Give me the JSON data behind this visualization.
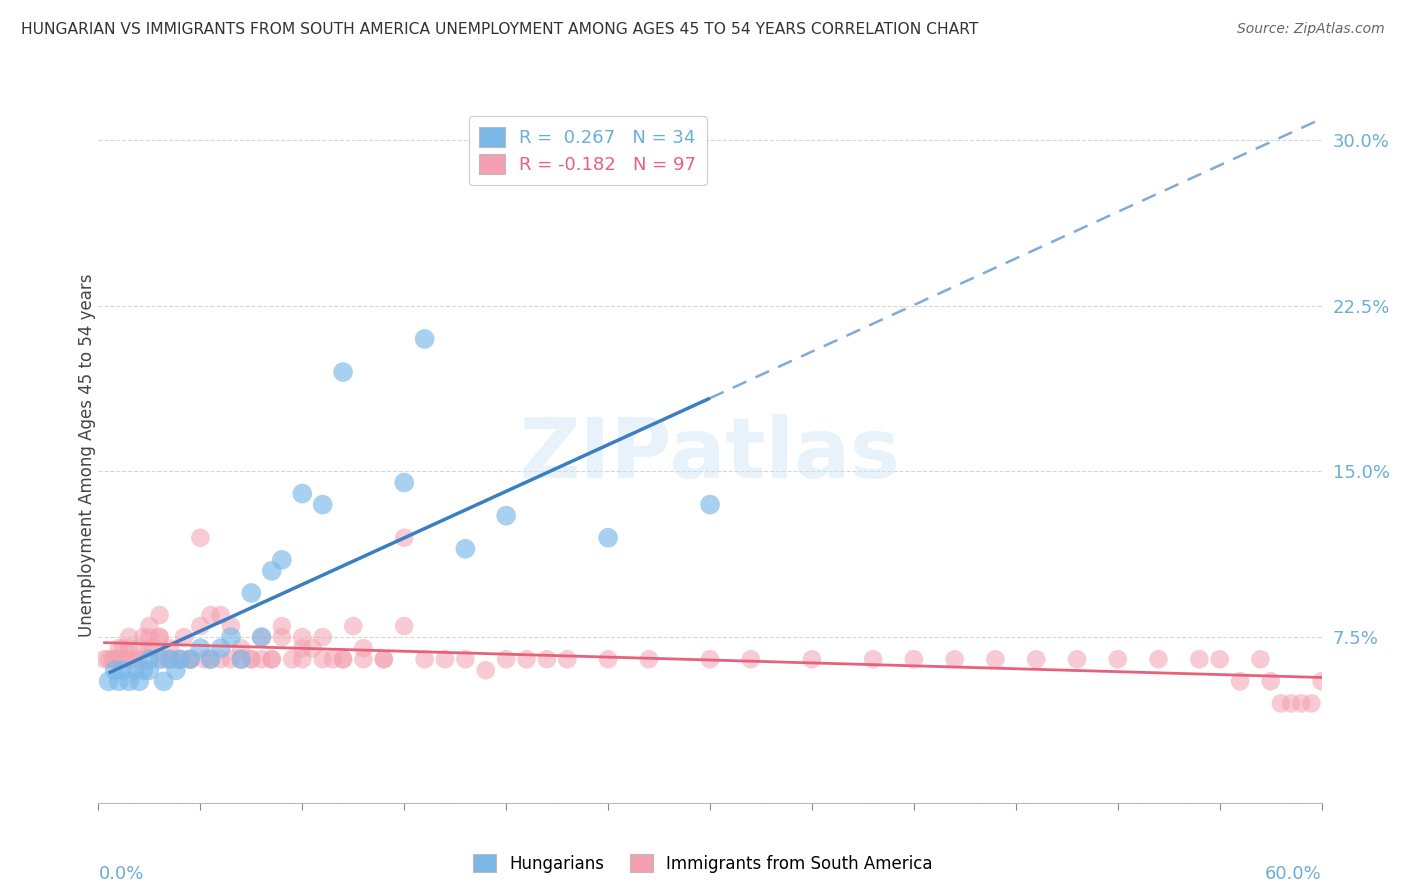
{
  "title": "HUNGARIAN VS IMMIGRANTS FROM SOUTH AMERICA UNEMPLOYMENT AMONG AGES 45 TO 54 YEARS CORRELATION CHART",
  "source": "Source: ZipAtlas.com",
  "ylabel": "Unemployment Among Ages 45 to 54 years",
  "ytick_values": [
    0.0,
    0.075,
    0.15,
    0.225,
    0.3
  ],
  "ytick_labels": [
    "",
    "7.5%",
    "15.0%",
    "22.5%",
    "30.0%"
  ],
  "xlim": [
    0.0,
    0.6
  ],
  "ylim": [
    0.0,
    0.315
  ],
  "legend1_R": "R =  0.267",
  "legend1_N": "N = 34",
  "legend2_R": "R = -0.182",
  "legend2_N": "N = 97",
  "blue_color": "#7ab8e8",
  "pink_color": "#f4a0b0",
  "blue_line_color": "#3a7fc1",
  "pink_line_color": "#e8607a",
  "watermark_text": "ZIPatlas",
  "axis_color": "#6baed6",
  "title_color": "#333333",
  "hungarian_x": [
    0.005,
    0.008,
    0.01,
    0.012,
    0.015,
    0.018,
    0.02,
    0.022,
    0.025,
    0.025,
    0.03,
    0.032,
    0.035,
    0.038,
    0.04,
    0.045,
    0.05,
    0.055,
    0.06,
    0.065,
    0.07,
    0.075,
    0.08,
    0.085,
    0.09,
    0.1,
    0.11,
    0.12,
    0.15,
    0.16,
    0.18,
    0.2,
    0.25,
    0.3
  ],
  "hungarian_y": [
    0.055,
    0.06,
    0.055,
    0.06,
    0.055,
    0.06,
    0.055,
    0.06,
    0.06,
    0.065,
    0.065,
    0.055,
    0.065,
    0.06,
    0.065,
    0.065,
    0.07,
    0.065,
    0.07,
    0.075,
    0.065,
    0.095,
    0.075,
    0.105,
    0.11,
    0.14,
    0.135,
    0.195,
    0.145,
    0.21,
    0.115,
    0.13,
    0.12,
    0.135
  ],
  "sa_x": [
    0.003,
    0.005,
    0.007,
    0.008,
    0.01,
    0.01,
    0.012,
    0.013,
    0.015,
    0.015,
    0.015,
    0.018,
    0.02,
    0.02,
    0.022,
    0.025,
    0.025,
    0.025,
    0.027,
    0.03,
    0.03,
    0.03,
    0.032,
    0.035,
    0.035,
    0.04,
    0.04,
    0.042,
    0.045,
    0.045,
    0.05,
    0.05,
    0.052,
    0.055,
    0.055,
    0.06,
    0.06,
    0.065,
    0.065,
    0.07,
    0.07,
    0.075,
    0.075,
    0.08,
    0.08,
    0.085,
    0.085,
    0.09,
    0.09,
    0.095,
    0.1,
    0.1,
    0.1,
    0.105,
    0.11,
    0.11,
    0.115,
    0.12,
    0.12,
    0.125,
    0.13,
    0.13,
    0.14,
    0.14,
    0.15,
    0.15,
    0.16,
    0.17,
    0.18,
    0.19,
    0.2,
    0.21,
    0.22,
    0.23,
    0.25,
    0.27,
    0.3,
    0.32,
    0.35,
    0.38,
    0.4,
    0.42,
    0.44,
    0.46,
    0.48,
    0.5,
    0.52,
    0.54,
    0.55,
    0.56,
    0.57,
    0.575,
    0.58,
    0.585,
    0.59,
    0.595,
    0.6
  ],
  "sa_y": [
    0.065,
    0.065,
    0.065,
    0.065,
    0.07,
    0.065,
    0.07,
    0.065,
    0.065,
    0.07,
    0.075,
    0.065,
    0.07,
    0.065,
    0.075,
    0.08,
    0.07,
    0.075,
    0.07,
    0.085,
    0.075,
    0.075,
    0.065,
    0.07,
    0.065,
    0.065,
    0.065,
    0.075,
    0.065,
    0.065,
    0.12,
    0.08,
    0.065,
    0.085,
    0.065,
    0.085,
    0.065,
    0.065,
    0.08,
    0.07,
    0.065,
    0.065,
    0.065,
    0.065,
    0.075,
    0.065,
    0.065,
    0.075,
    0.08,
    0.065,
    0.07,
    0.065,
    0.075,
    0.07,
    0.065,
    0.075,
    0.065,
    0.065,
    0.065,
    0.08,
    0.07,
    0.065,
    0.065,
    0.065,
    0.12,
    0.08,
    0.065,
    0.065,
    0.065,
    0.06,
    0.065,
    0.065,
    0.065,
    0.065,
    0.065,
    0.065,
    0.065,
    0.065,
    0.065,
    0.065,
    0.065,
    0.065,
    0.065,
    0.065,
    0.065,
    0.065,
    0.065,
    0.065,
    0.065,
    0.055,
    0.065,
    0.055,
    0.045,
    0.045,
    0.045,
    0.045,
    0.055
  ]
}
